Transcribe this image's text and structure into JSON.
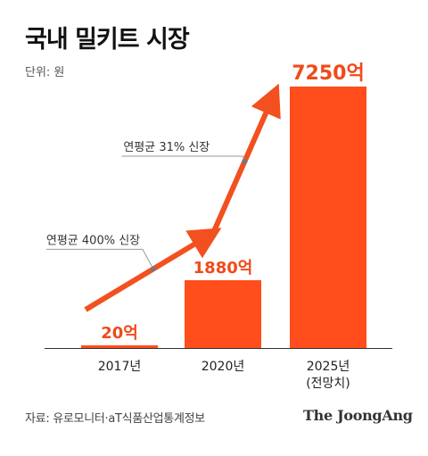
{
  "title": "국내 밀키트 시장",
  "unit": "단위: 원",
  "source": "자료: 유로모니터·aT식품산업통계정보",
  "brand": "The JoongAng",
  "colors": {
    "bar": "#ff4d1c",
    "arrow": "#f2501f",
    "label": "#f04a1a",
    "axis": "#333333",
    "leader": "#9a9a9a"
  },
  "chart_data": {
    "type": "bar",
    "categories": [
      "2017년",
      "2020년",
      "2025년 (전망치)"
    ],
    "category_lines": [
      [
        "2017년"
      ],
      [
        "2020년"
      ],
      [
        "2025년",
        "(전망치)"
      ]
    ],
    "values": [
      20,
      1880,
      7250
    ],
    "value_labels": [
      "20억",
      "1880억",
      "7250억"
    ],
    "unit": "억 원",
    "ylim": [
      0,
      7250
    ],
    "annotations": [
      {
        "text": "연평균 400% 신장",
        "from": "2017년",
        "to": "2020년"
      },
      {
        "text": "연평균 31% 신장",
        "from": "2020년",
        "to": "2025년 (전망치)"
      }
    ],
    "grid": false,
    "legend": "none"
  }
}
